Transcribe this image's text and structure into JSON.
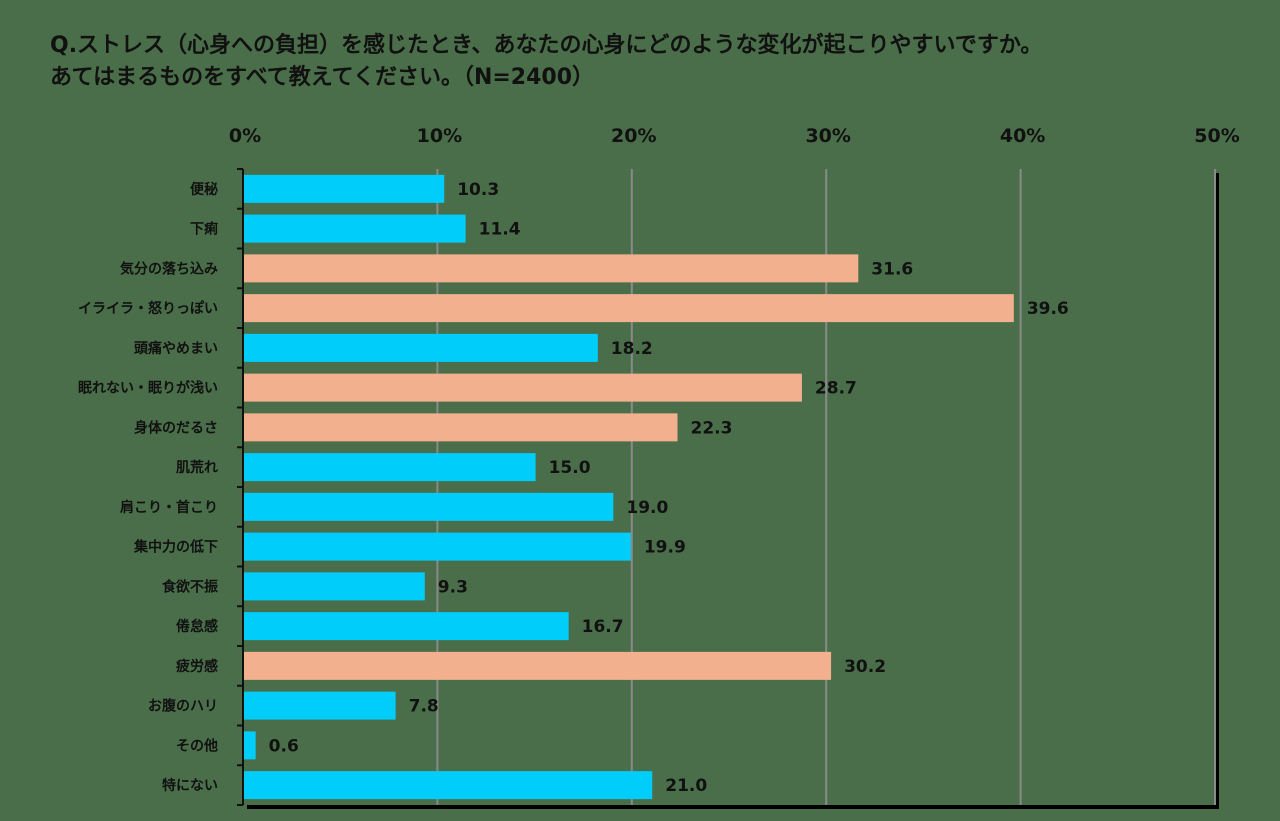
{
  "title": {
    "line1": "Q.ストレス（心身への負担）を感じたとき、あなたの心身にどのような変化が起こりやすいですか。",
    "line2": "あてはまるものをすべて教えてください。（N=2400）"
  },
  "colors": {
    "blue": "#00cdfa",
    "salmon": "#f2b08f",
    "grid": "#8a8a8a",
    "axis": "#111111",
    "background": "#4a6e49"
  },
  "chart_data": {
    "type": "bar",
    "orientation": "horizontal",
    "xlim": [
      0,
      50
    ],
    "ticks": [
      "0%",
      "10%",
      "20%",
      "30%",
      "40%",
      "50%"
    ],
    "tick_values": [
      0,
      10,
      20,
      30,
      40,
      50
    ],
    "grid": true,
    "categories": [
      "便秘",
      "下痢",
      "気分の落ち込み",
      "イライラ・怒りっぽい",
      "頭痛やめまい",
      "眠れない・眠りが浅い",
      "身体のだるさ",
      "肌荒れ",
      "肩こり・首こり",
      "集中力の低下",
      "食欲不振",
      "倦怠感",
      "疲労感",
      "お腹のハリ",
      "その他",
      "特にない"
    ],
    "values": [
      10.3,
      11.4,
      31.6,
      39.6,
      18.2,
      28.7,
      22.3,
      15.0,
      19.0,
      19.9,
      9.3,
      16.7,
      30.2,
      7.8,
      0.6,
      21.0
    ],
    "value_labels": [
      "10.3",
      "11.4",
      "31.6",
      "39.6",
      "18.2",
      "28.7",
      "22.3",
      "15.0",
      "19.0",
      "19.9",
      "9.3",
      "16.7",
      "30.2",
      "7.8",
      "0.6",
      "21.0"
    ],
    "highlight": [
      "blue",
      "blue",
      "salmon",
      "salmon",
      "blue",
      "salmon",
      "salmon",
      "blue",
      "blue",
      "blue",
      "blue",
      "blue",
      "salmon",
      "blue",
      "blue",
      "blue"
    ]
  }
}
